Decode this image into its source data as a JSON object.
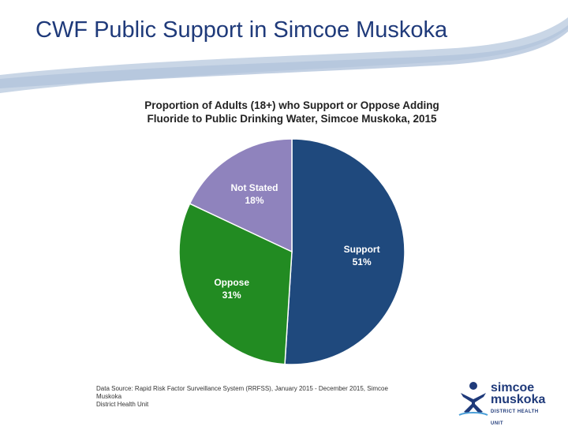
{
  "slide": {
    "title": "CWF Public Support in Simcoe Muskoka"
  },
  "chart_data": {
    "type": "pie",
    "title_lines": [
      "Proportion of Adults (18+) who Support or Oppose Adding",
      "Fluoride to Public Drinking Water, Simcoe Muskoka, 2015"
    ],
    "slices": [
      {
        "label": "Support",
        "value": 51,
        "value_label": "51%",
        "color": "#1f497d"
      },
      {
        "label": "Oppose",
        "value": 31,
        "value_label": "31%",
        "color": "#228b22"
      },
      {
        "label": "Not Stated",
        "value": 18,
        "value_label": "18%",
        "color": "#8f83bd"
      }
    ],
    "label_color": "#ffffff"
  },
  "footer": {
    "source_line1": "Data Source: Rapid Risk Factor Surveillance System (RRFSS), January 2015 - December 2015, Simcoe Muskoka",
    "source_line2": "District Health Unit"
  },
  "logo": {
    "line1": "simcoe",
    "line2": "muskoka",
    "line3": "DISTRICT HEALTH UNIT",
    "color": "#1f3a7a"
  }
}
